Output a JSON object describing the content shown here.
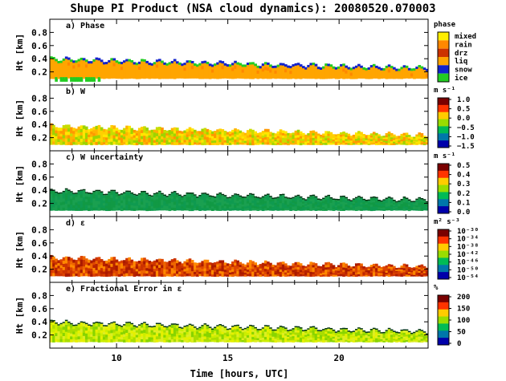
{
  "title": "Shupe PI Product (NSA cloud dynamics): 20080520.070003",
  "chart_data": {
    "type": "heatmap",
    "xlabel": "Time [hours, UTC]",
    "x_ticks": [
      10,
      15,
      20
    ],
    "x_range": [
      7,
      24
    ],
    "ylabel": "Ht [km]",
    "y_ticks": [
      "0.2",
      "0.4",
      "0.6",
      "0.8"
    ],
    "y_range": [
      0,
      1.0
    ],
    "cloud_top_km": {
      "start": 0.38,
      "mid": 0.3,
      "end": 0.24
    },
    "cloud_base_km": 0.14,
    "panels": [
      {
        "label": "a) Phase",
        "colorbar_title": "phase",
        "colorbar_labels": [
          "mixed",
          "rain",
          "drz",
          "liq",
          "snow",
          "ice"
        ],
        "colors": [
          "#ffee00",
          "#ff8800",
          "#cc3300",
          "#ffa500",
          "#1122cc",
          "#22cc22"
        ]
      },
      {
        "label": "b) W",
        "colorbar_title": "m s⁻¹",
        "colorbar_labels": [
          "1.0",
          "0.5",
          "0.0",
          "−0.5",
          "−1.0",
          "−1.5"
        ]
      },
      {
        "label": "c) W uncertainty",
        "colorbar_title": "m s⁻¹",
        "colorbar_labels": [
          "0.5",
          "0.4",
          "0.3",
          "0.2",
          "0.1",
          "0.0"
        ]
      },
      {
        "label": "d) ε",
        "colorbar_title": "m² s⁻³",
        "colorbar_labels": [
          "10⁻³⁰",
          "10⁻³⁴",
          "10⁻³⁸",
          "10⁻⁴²",
          "10⁻⁴⁶",
          "10⁻⁵⁰",
          "10⁻⁵⁴"
        ]
      },
      {
        "label": "e) Fractional Error in ε",
        "colorbar_title": "%",
        "colorbar_labels": [
          "200",
          "150",
          "100",
          "50",
          "0"
        ]
      }
    ]
  }
}
